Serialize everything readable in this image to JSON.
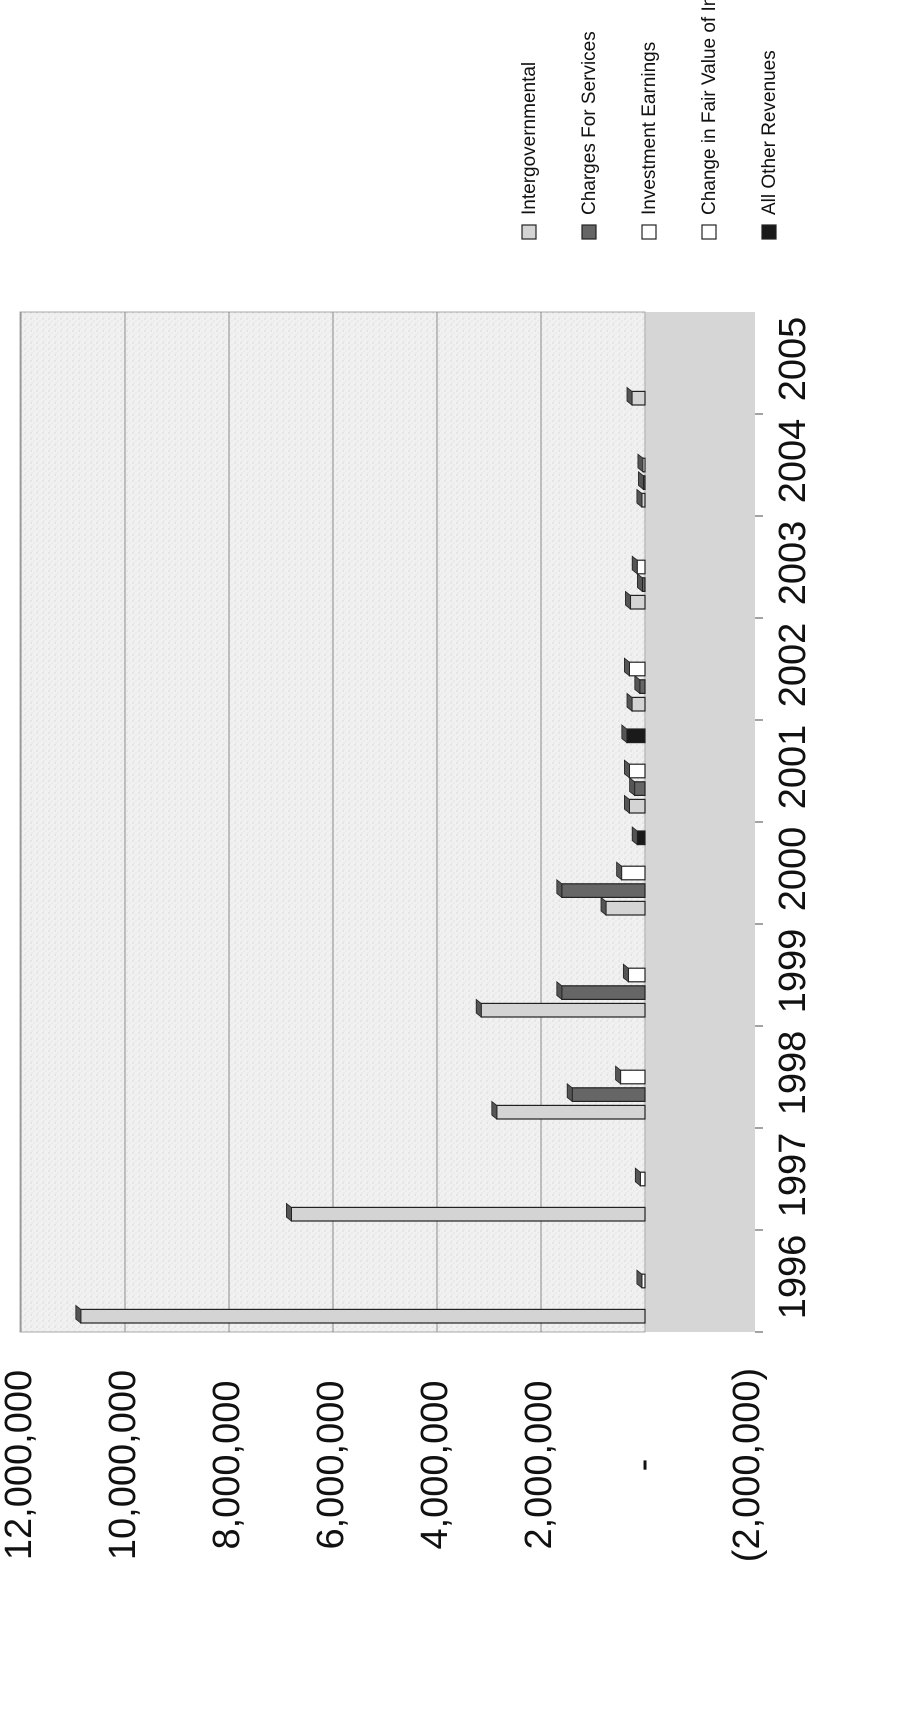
{
  "chart_data": {
    "type": "bar",
    "orientation": "rotated 90deg clockwise (3-D clustered column)",
    "categories": [
      "1996",
      "1997",
      "1998",
      "1999",
      "2000",
      "2001",
      "2002",
      "2003",
      "2004",
      "2005"
    ],
    "series": [
      {
        "name": "Intergovernmental",
        "color": "#d4d4d4",
        "values": [
          10850000,
          6800000,
          2850000,
          3150000,
          750000,
          300000,
          250000,
          280000,
          60000,
          250000
        ]
      },
      {
        "name": "Charges For Services",
        "color": "#666666",
        "values": [
          0,
          0,
          1400000,
          1600000,
          1600000,
          200000,
          100000,
          50000,
          30000,
          0
        ]
      },
      {
        "name": "Investment Earnings",
        "color": "#ffffff",
        "values": [
          60000,
          90000,
          470000,
          320000,
          450000,
          300000,
          300000,
          150000,
          40000,
          0
        ]
      },
      {
        "name": "Change in Fair Value of Investments",
        "color": "#ffffff",
        "values": [
          0,
          0,
          0,
          0,
          0,
          0,
          0,
          0,
          0,
          0
        ]
      },
      {
        "name": "All Other Revenues",
        "color": "#1a1a1a",
        "values": [
          0,
          0,
          0,
          0,
          150000,
          350000,
          0,
          0,
          0,
          0
        ]
      }
    ],
    "ylim": [
      -2000000,
      12000000
    ],
    "yticks": [
      "12,000,000",
      "10,000,000",
      "8,000,000",
      "6,000,000",
      "4,000,000",
      "2,000,000",
      "-",
      "(2,000,000)"
    ],
    "ytick_values": [
      12000000,
      10000000,
      8000000,
      6000000,
      4000000,
      2000000,
      0,
      -2000000
    ],
    "grid": true,
    "legend_position": "right"
  }
}
